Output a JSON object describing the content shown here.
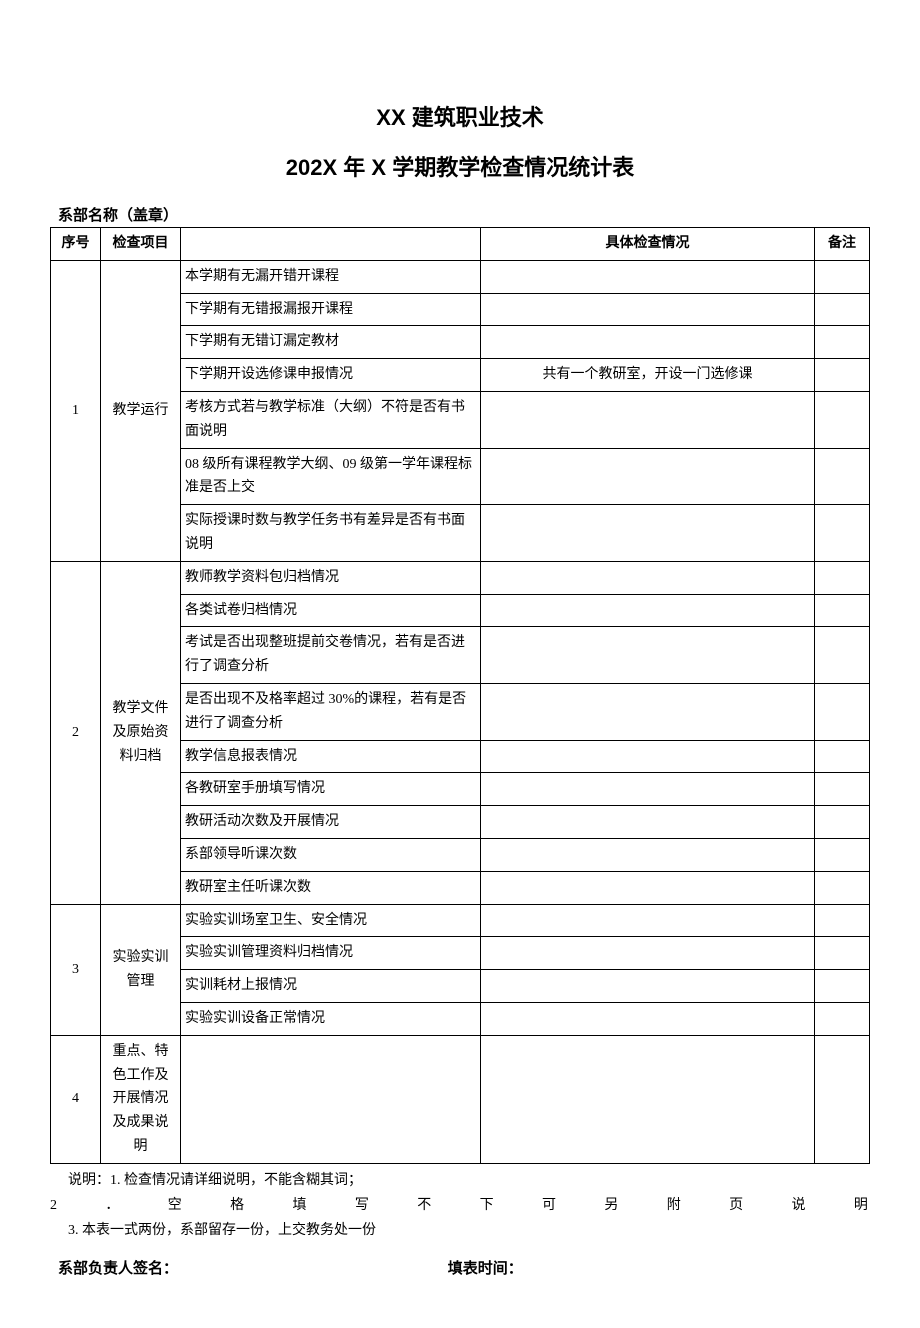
{
  "title1": "XX 建筑职业技术",
  "title2": "202X 年 X 学期教学检查情况统计表",
  "deptName": "系部名称（盖章）",
  "headers": {
    "seq": "序号",
    "category": "检查项目",
    "item": "",
    "detail": "具体检查情况",
    "note": "备注"
  },
  "section1": {
    "seq": "1",
    "category": "教学运行",
    "items": [
      {
        "desc": "本学期有无漏开错开课程",
        "detail": "",
        "note": ""
      },
      {
        "desc": "下学期有无错报漏报开课程",
        "detail": "",
        "note": ""
      },
      {
        "desc": "下学期有无错订漏定教材",
        "detail": "",
        "note": ""
      },
      {
        "desc": "下学期开设选修课申报情况",
        "detail": "共有一个教研室，开设一门选修课",
        "note": ""
      },
      {
        "desc": "考核方式若与教学标准（大纲）不符是否有书面说明",
        "detail": "",
        "note": ""
      },
      {
        "desc": "08 级所有课程教学大纲、09 级第一学年课程标准是否上交",
        "detail": "",
        "note": ""
      },
      {
        "desc": "实际授课时数与教学任务书有差异是否有书面说明",
        "detail": "",
        "note": ""
      }
    ]
  },
  "section2": {
    "seq": "2",
    "category": "教学文件及原始资料归档",
    "items": [
      {
        "desc": "教师教学资料包归档情况",
        "detail": "",
        "note": ""
      },
      {
        "desc": "各类试卷归档情况",
        "detail": "",
        "note": ""
      },
      {
        "desc": "考试是否出现整班提前交卷情况，若有是否进行了调查分析",
        "detail": "",
        "note": ""
      },
      {
        "desc": "是否出现不及格率超过 30%的课程，若有是否进行了调查分析",
        "detail": "",
        "note": ""
      },
      {
        "desc": "教学信息报表情况",
        "detail": "",
        "note": ""
      },
      {
        "desc": "各教研室手册填写情况",
        "detail": "",
        "note": ""
      },
      {
        "desc": "教研活动次数及开展情况",
        "detail": "",
        "note": ""
      },
      {
        "desc": "系部领导听课次数",
        "detail": "",
        "note": ""
      },
      {
        "desc": "教研室主任听课次数",
        "detail": "",
        "note": ""
      }
    ]
  },
  "section3": {
    "seq": "3",
    "category": "实验实训管理",
    "items": [
      {
        "desc": "实验实训场室卫生、安全情况",
        "detail": "",
        "note": ""
      },
      {
        "desc": "实验实训管理资料归档情况",
        "detail": "",
        "note": ""
      },
      {
        "desc": "实训耗材上报情况",
        "detail": "",
        "note": ""
      },
      {
        "desc": "实验实训设备正常情况",
        "detail": "",
        "note": ""
      }
    ]
  },
  "section4": {
    "seq": "4",
    "category": "重点、特色工作及开展情况及成果说明",
    "desc": "",
    "detail": "",
    "note": ""
  },
  "notes": {
    "n1": "说明：1. 检查情况请详细说明，不能含糊其词；",
    "n2chars": [
      "2",
      "．",
      "空",
      "格",
      "填",
      "写",
      "不",
      "下",
      "可",
      "另",
      "附",
      "页",
      "说",
      "明"
    ],
    "n3": "3. 本表一式两份，系部留存一份，上交教务处一份"
  },
  "sign": {
    "left": "系部负责人签名：",
    "right": "填表时间："
  }
}
